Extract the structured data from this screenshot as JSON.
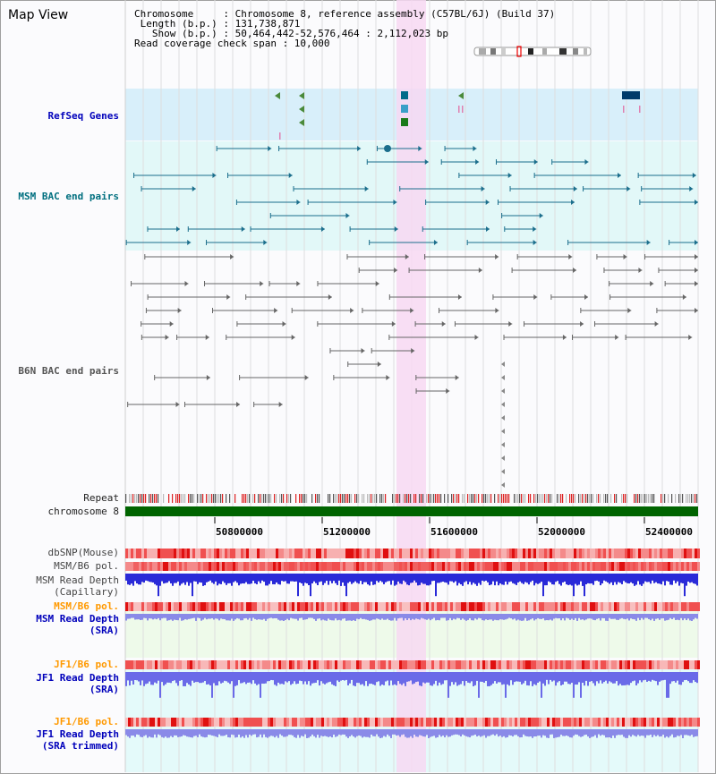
{
  "title": "Map View",
  "info": {
    "chromosome_line": "Chromosome     : Chromosome 8, reference assembly (C57BL/6J) (Build 37)",
    "length_line": " Length (b.p.) : 131,738,871",
    "show_line": "   Show (b.p.) : 50,464,442-52,576,464 : 2,112,023 bp",
    "coverage_line": "Read coverage check span : 10,000"
  },
  "tracks": {
    "refseq": "RefSeq Genes",
    "msm_bac": "MSM BAC end pairs",
    "b6n_bac": "B6N BAC end pairs",
    "repeat": "Repeat",
    "chromosome": "chromosome 8",
    "dbsnp": "dbSNP(Mouse)",
    "msm_b6_pol": "MSM/B6 pol.",
    "msm_depth_cap": "MSM Read Depth",
    "msm_depth_cap_sub": "(Capillary)",
    "msm_b6_pol2": "MSM/B6 pol.",
    "msm_depth_sra": "MSM Read Depth",
    "msm_depth_sra_sub": "(SRA)",
    "jf1_pol": "JF1/B6 pol.",
    "jf1_depth": "JF1 Read Depth",
    "jf1_depth_sub": "(SRA)",
    "jf1_pol2": "JF1/B6 pol.",
    "jf1_depth_trim": "JF1 Read Depth",
    "jf1_depth_trim_sub": "(SRA trimmed)"
  },
  "axis": {
    "ticks": [
      "50800000",
      "51200000",
      "51600000",
      "52000000",
      "52400000"
    ]
  },
  "colors": {
    "highlight": "#f7d8f2",
    "refseq_bg": "#d8effa",
    "msm_bg": "#e2f8f8",
    "chrom": "#006400",
    "gene": "#006b8a",
    "bac_msm": "#1b6e8c",
    "bac_b6n": "#666666",
    "depth_msm": "#2a2ad8",
    "depth_sra": "#8a8ae8",
    "label_blue": "#0000bb",
    "label_teal": "#006f7f",
    "label_orange": "#ff9900"
  }
}
